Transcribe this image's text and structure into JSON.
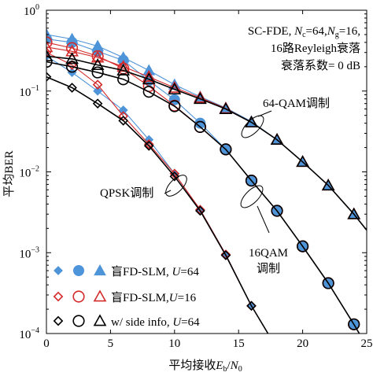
{
  "chart_data": {
    "type": "line",
    "xlabel_parts": {
      "prefix": "平均接收",
      "e": "E",
      "b": "b",
      "slash": "/",
      "n": "N",
      "zero": "0"
    },
    "ylabel": "平均BER",
    "xlim": [
      0,
      25
    ],
    "ylim": [
      0.0001,
      1
    ],
    "yscale": "log",
    "x_ticks": [
      0,
      5,
      10,
      15,
      20,
      25
    ],
    "y_ticks": [
      {
        "value": 1,
        "base": "10",
        "exp": "0"
      },
      {
        "value": 0.1,
        "base": "10",
        "exp": "−1"
      },
      {
        "value": 0.01,
        "base": "10",
        "exp": "−2"
      },
      {
        "value": 0.001,
        "base": "10",
        "exp": "−3"
      },
      {
        "value": 0.0001,
        "base": "10",
        "exp": "−4"
      }
    ],
    "info_box": {
      "line1": {
        "a": "SC-FDE, ",
        "n1": "N",
        "s1": "c",
        "b": "=64,",
        "n2": "N",
        "s2": "g",
        "c": "=16,"
      },
      "line2": "16路Reyleigh衰落",
      "line3": "衰落系数= 0 dB"
    },
    "annotations": {
      "qam64": "64-QAM调制",
      "qam16_a": "16QAM",
      "qam16_b": "调制",
      "qpsk": "QPSK调制"
    },
    "legend": [
      {
        "prefix": "盲FD-SLM, ",
        "u": "U",
        "suffix": "=64",
        "color": "#4e94d8",
        "filled": true
      },
      {
        "prefix": "盲FD-SLM,",
        "u": "U",
        "suffix": "=16",
        "color": "#d42a2a",
        "filled": false
      },
      {
        "prefix": "w/ side info, ",
        "u": "U",
        "suffix": "=64",
        "color": "#000000",
        "filled": false
      }
    ],
    "series": [
      {
        "mod": "QPSK",
        "name": "盲FD-SLM, U=64",
        "marker": "diamond",
        "color": "#4e94d8",
        "filled": true,
        "x": [
          0,
          2,
          4,
          6,
          8,
          10,
          12,
          14,
          16,
          17.3
        ],
        "y": [
          0.27,
          0.17,
          0.1,
          0.058,
          0.025,
          0.0095,
          0.0034,
          0.00095,
          0.00022,
          0.0001
        ]
      },
      {
        "mod": "QPSK",
        "name": "盲FD-SLM, U=16",
        "marker": "diamond",
        "color": "#d42a2a",
        "filled": false,
        "x": [
          0,
          2,
          4,
          6,
          8,
          10,
          12,
          14,
          16,
          17.3
        ],
        "y": [
          0.3,
          0.21,
          0.12,
          0.049,
          0.022,
          0.0095,
          0.0034,
          0.00095,
          0.00022,
          0.0001
        ]
      },
      {
        "mod": "QPSK",
        "name": "w/ side info, U=64",
        "marker": "diamond",
        "color": "#000000",
        "filled": false,
        "x": [
          0,
          2,
          4,
          6,
          8,
          10,
          12,
          14,
          16,
          17.3
        ],
        "y": [
          0.15,
          0.11,
          0.07,
          0.043,
          0.021,
          0.0088,
          0.0033,
          0.00093,
          0.00022,
          0.0001
        ]
      },
      {
        "mod": "16QAM",
        "name": "盲FD-SLM, U=64",
        "marker": "circle",
        "color": "#4e94d8",
        "filled": true,
        "x": [
          0,
          2,
          4,
          6,
          8,
          10,
          12,
          14,
          16,
          18,
          20,
          22,
          24,
          25
        ],
        "y": [
          0.44,
          0.4,
          0.31,
          0.24,
          0.135,
          0.078,
          0.04,
          0.019,
          0.0078,
          0.0033,
          0.0012,
          0.00042,
          0.00013,
          7e-05
        ]
      },
      {
        "mod": "16QAM",
        "name": "盲FD-SLM, U=16",
        "marker": "circle",
        "color": "#d42a2a",
        "filled": false,
        "x": [
          0,
          2,
          4,
          6,
          8,
          10,
          12,
          14,
          16,
          18,
          20,
          22,
          24,
          25
        ],
        "y": [
          0.4,
          0.34,
          0.27,
          0.19,
          0.115,
          0.066,
          0.036,
          0.019,
          0.0078,
          0.0033,
          0.0012,
          0.00042,
          0.00013,
          7e-05
        ]
      },
      {
        "mod": "16QAM",
        "name": "w/ side info, U=64",
        "marker": "circle",
        "color": "#000000",
        "filled": false,
        "x": [
          0,
          2,
          4,
          6,
          8,
          10,
          12,
          14,
          16,
          18,
          20,
          22,
          24,
          25
        ],
        "y": [
          0.23,
          0.2,
          0.17,
          0.14,
          0.098,
          0.065,
          0.036,
          0.019,
          0.0078,
          0.0033,
          0.0012,
          0.00042,
          0.00013,
          7e-05
        ]
      },
      {
        "mod": "64QAM",
        "name": "盲FD-SLM, U=64",
        "marker": "triangle",
        "color": "#4e94d8",
        "filled": true,
        "x": [
          0,
          2,
          4,
          6,
          8,
          10,
          12,
          14,
          16,
          18,
          20,
          22,
          24,
          25
        ],
        "y": [
          0.5,
          0.44,
          0.36,
          0.26,
          0.18,
          0.12,
          0.085,
          0.062,
          0.042,
          0.025,
          0.0133,
          0.0068,
          0.003,
          0.0019
        ]
      },
      {
        "mod": "64QAM",
        "name": "盲FD-SLM, U=16",
        "marker": "triangle",
        "color": "#d42a2a",
        "filled": false,
        "x": [
          0,
          2,
          4,
          6,
          8,
          10,
          12,
          14,
          16,
          18,
          20,
          22,
          24,
          25
        ],
        "y": [
          0.35,
          0.31,
          0.26,
          0.2,
          0.15,
          0.11,
          0.083,
          0.061,
          0.041,
          0.025,
          0.0133,
          0.0068,
          0.003,
          0.0019
        ]
      },
      {
        "mod": "64QAM",
        "name": "w/ side info, U=64",
        "marker": "triangle",
        "color": "#000000",
        "filled": false,
        "x": [
          0,
          2,
          4,
          6,
          8,
          10,
          12,
          14,
          16,
          18,
          20,
          22,
          24,
          25
        ],
        "y": [
          0.27,
          0.25,
          0.21,
          0.18,
          0.14,
          0.105,
          0.08,
          0.06,
          0.041,
          0.025,
          0.0133,
          0.0068,
          0.003,
          0.0019
        ]
      }
    ]
  }
}
